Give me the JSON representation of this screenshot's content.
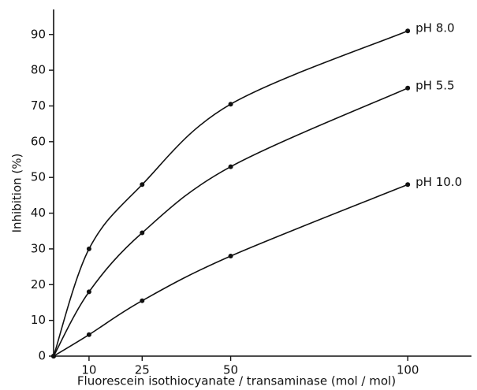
{
  "chart_data": {
    "type": "line",
    "xlabel": "Fluorescein isothiocyanate / transaminase (mol / mol)",
    "ylabel": "Inhibition (%)",
    "x": [
      0,
      10,
      25,
      50,
      100
    ],
    "series": [
      {
        "name": "pH 8.0",
        "color": "#111111",
        "values": [
          0,
          30,
          48,
          70.5,
          91
        ]
      },
      {
        "name": "pH 5.5",
        "color": "#111111",
        "values": [
          0,
          18,
          34.5,
          53,
          75
        ]
      },
      {
        "name": "pH 10.0",
        "color": "#111111",
        "values": [
          0,
          6,
          15.5,
          28,
          48
        ]
      }
    ],
    "xlim": [
      0,
      118
    ],
    "ylim": [
      0,
      97
    ],
    "xticks": [
      10,
      25,
      50,
      100
    ],
    "yticks": [
      0,
      10,
      20,
      30,
      40,
      50,
      60,
      70,
      80,
      90
    ],
    "grid": false
  }
}
